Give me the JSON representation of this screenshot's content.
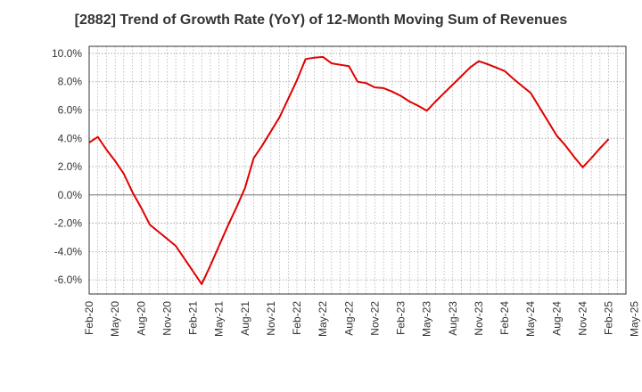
{
  "chart_data": {
    "type": "line",
    "title": "[2882]  Trend of Growth Rate (YoY) of 12-Month Moving Sum of Revenues",
    "xlabel": "",
    "ylabel": "",
    "ylim": [
      -7,
      10.5
    ],
    "y_ticks": [
      10,
      8,
      6,
      4,
      2,
      0,
      -2,
      -4,
      -6
    ],
    "y_tick_labels": [
      "10.0%",
      "8.0%",
      "6.0%",
      "4.0%",
      "2.0%",
      "0.0%",
      "-2.0%",
      "-4.0%",
      "-6.0%"
    ],
    "x_tick_labels": [
      "Feb-20",
      "May-20",
      "Aug-20",
      "Nov-20",
      "Feb-21",
      "May-21",
      "Aug-21",
      "Nov-21",
      "Feb-22",
      "May-22",
      "Aug-22",
      "Nov-22",
      "Feb-23",
      "May-23",
      "Aug-23",
      "Nov-23",
      "Feb-24",
      "May-24",
      "Aug-24",
      "Nov-24",
      "Feb-25",
      "May-25"
    ],
    "x_start": "2020-02",
    "grid": true,
    "grid_style": "dotted",
    "colors": {
      "line": "#e00000",
      "grid": "#999999",
      "axis": "#333333"
    },
    "series": [
      {
        "name": "",
        "x": [
          "2020-02",
          "2020-03",
          "2020-04",
          "2020-05",
          "2020-06",
          "2020-07",
          "2020-08",
          "2020-09",
          "2020-10",
          "2020-11",
          "2020-12",
          "2021-01",
          "2021-02",
          "2021-03",
          "2021-04",
          "2021-05",
          "2021-06",
          "2021-07",
          "2021-08",
          "2021-09",
          "2021-10",
          "2021-11",
          "2021-12",
          "2022-01",
          "2022-02",
          "2022-03",
          "2022-04",
          "2022-05",
          "2022-06",
          "2022-07",
          "2022-08",
          "2022-09",
          "2022-10",
          "2022-11",
          "2022-12",
          "2023-01",
          "2023-02",
          "2023-03",
          "2023-04",
          "2023-05",
          "2023-06",
          "2023-07",
          "2023-08",
          "2023-09",
          "2023-10",
          "2023-11",
          "2023-12",
          "2024-01",
          "2024-02",
          "2024-03",
          "2024-04",
          "2024-05",
          "2024-06",
          "2024-07",
          "2024-08",
          "2024-09",
          "2024-10",
          "2024-11",
          "2024-12",
          "2025-01",
          "2025-02"
        ],
        "values": [
          3.7,
          4.1,
          3.2,
          2.4,
          1.5,
          0.2,
          -0.9,
          -2.1,
          -2.6,
          -3.1,
          -3.6,
          -4.5,
          -5.4,
          -6.3,
          -5.0,
          -3.6,
          -2.2,
          -0.9,
          0.5,
          2.6,
          3.5,
          4.5,
          5.5,
          6.8,
          8.1,
          9.6,
          9.7,
          9.75,
          9.3,
          9.2,
          9.1,
          8.0,
          7.9,
          7.6,
          7.55,
          7.3,
          7.0,
          6.6,
          6.3,
          5.95,
          6.6,
          7.2,
          7.8,
          8.4,
          9.0,
          9.45,
          9.25,
          9.0,
          8.75,
          8.2,
          7.7,
          7.2,
          6.2,
          5.2,
          4.2,
          3.5,
          2.7,
          1.95,
          2.6,
          3.3,
          3.95
        ]
      }
    ]
  }
}
